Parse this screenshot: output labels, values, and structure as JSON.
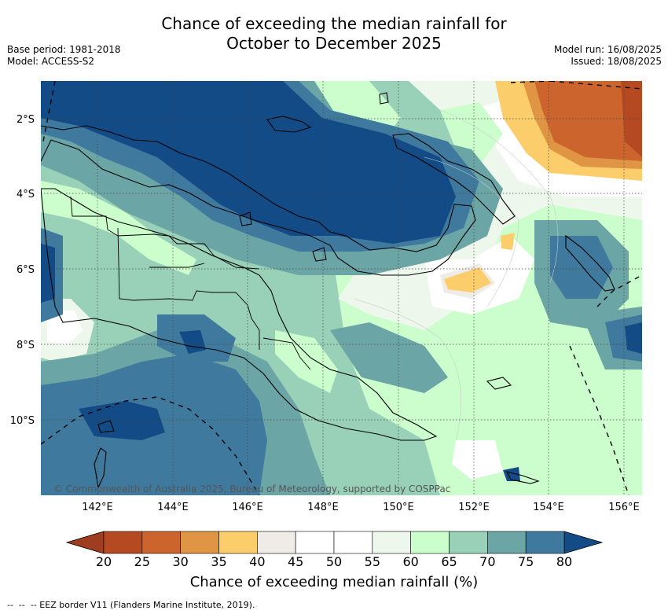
{
  "title_line1": "Chance of exceeding the median rainfall for",
  "title_line2": "October to December 2025",
  "base_period": "Base period: 1981-2018",
  "model": "Model: ACCESS-S2",
  "model_run": "Model run: 16/08/2025",
  "issued": "Issued: 18/08/2025",
  "credit": "© Commonwealth of Australia 2025, Bureau of Meteorology, supported by COSPPac",
  "lat_labels": [
    "2°S",
    "4°S",
    "6°S",
    "8°S",
    "10°S"
  ],
  "lon_labels": [
    "142°E",
    "144°E",
    "146°E",
    "148°E",
    "150°E",
    "152°E",
    "154°E",
    "156°E"
  ],
  "colorbar": {
    "title": "Chance of exceeding median rainfall (%)",
    "ticks": [
      "20",
      "25",
      "30",
      "35",
      "40",
      "45",
      "50",
      "55",
      "60",
      "65",
      "70",
      "75",
      "80"
    ],
    "low_color": "#9e3d1f",
    "colors": [
      "#b54a22",
      "#cc642e",
      "#e09545",
      "#fccd6b",
      "#efebe6",
      "#ffffff",
      "#ffffff",
      "#eef7ec",
      "#ccfdcc",
      "#98d0b8",
      "#6ca5a5",
      "#3f7a9e"
    ],
    "high_color": "#124b85"
  },
  "legend_note": "--  --  -- EEZ border V11 (Flanders Marine Institute, 2019)."
}
